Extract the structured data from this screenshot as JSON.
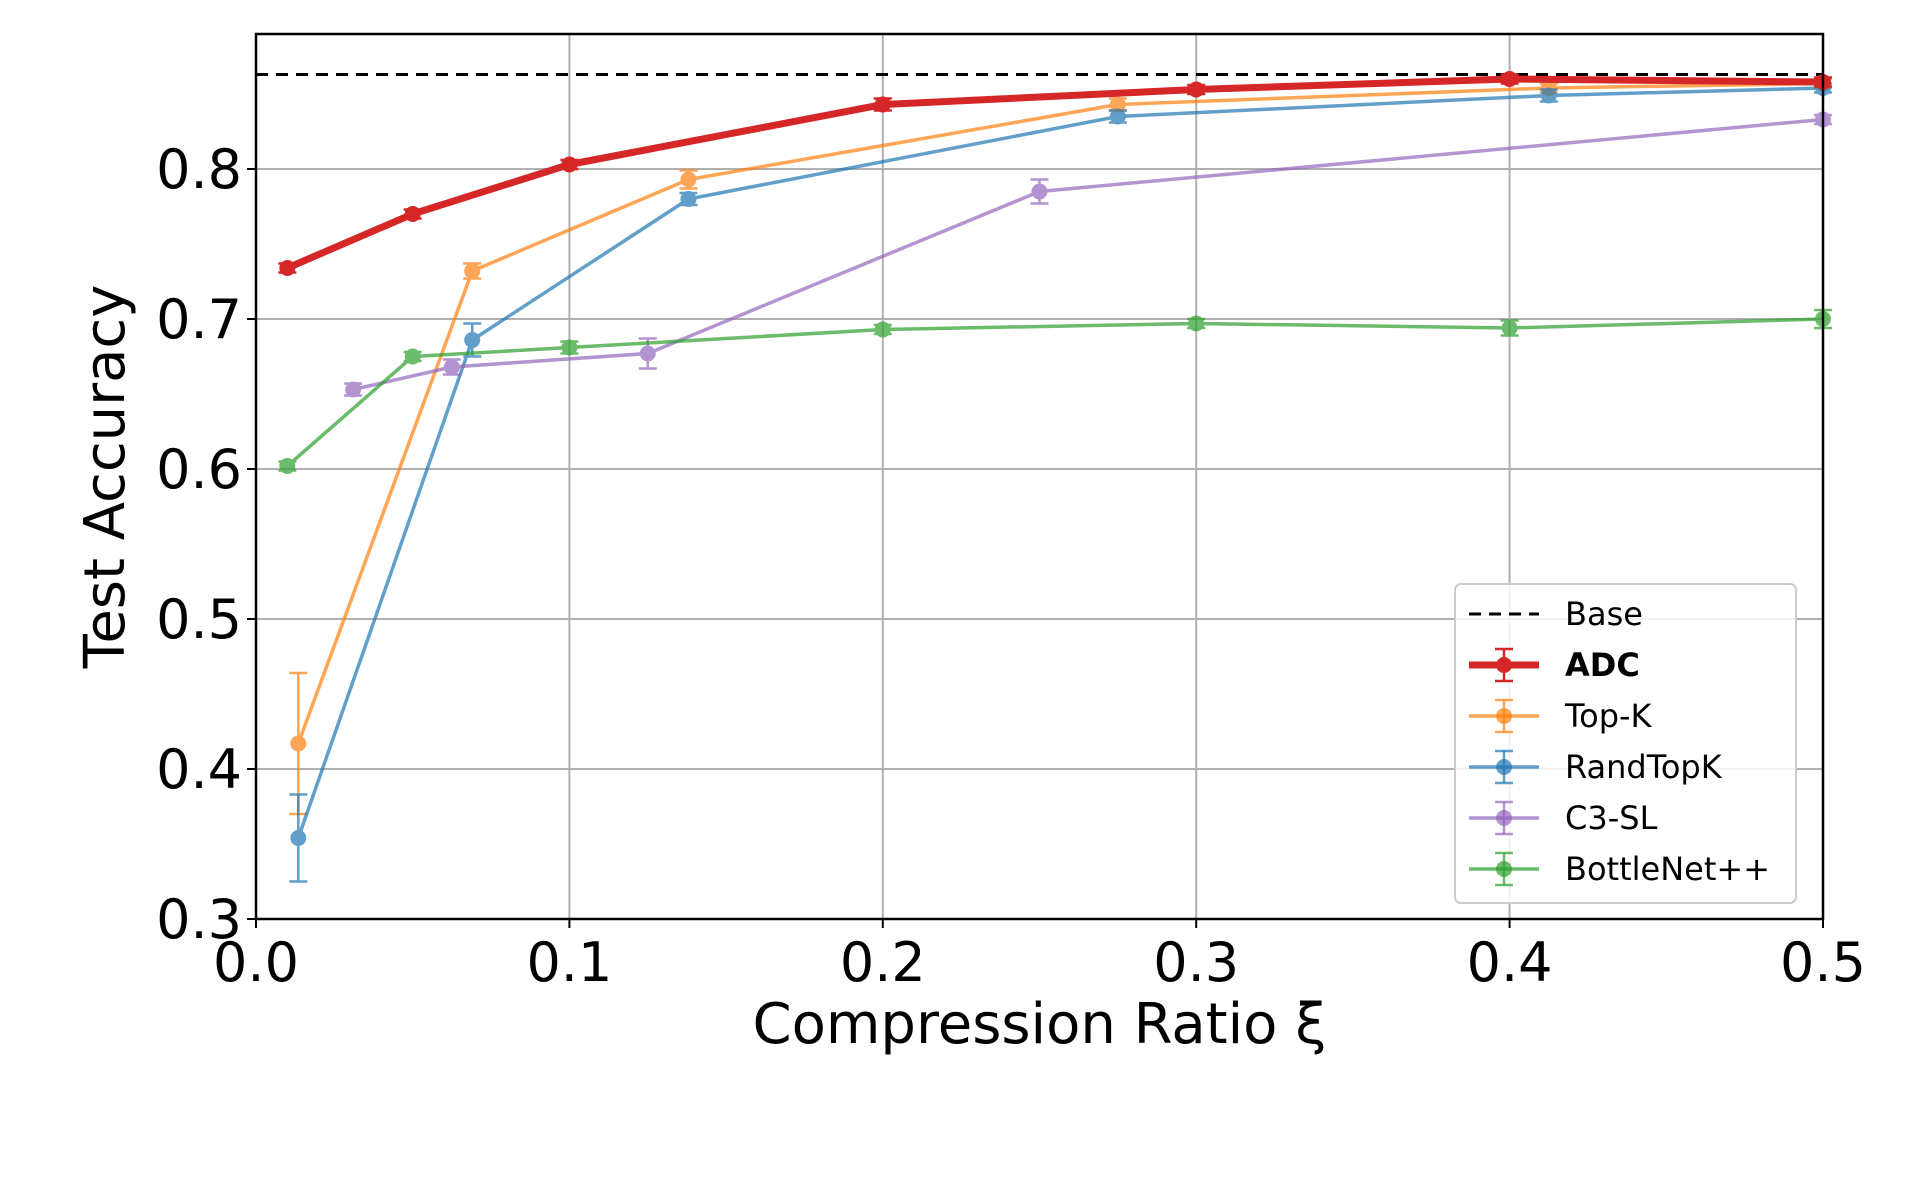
{
  "chart_data": {
    "type": "line",
    "xlabel": "Compression Ratio ξ",
    "ylabel": "Test Accuracy",
    "xlim": [
      0.0,
      0.5
    ],
    "ylim": [
      0.3,
      0.89
    ],
    "xticks": [
      0.0,
      0.1,
      0.2,
      0.3,
      0.4,
      0.5
    ],
    "yticks": [
      0.3,
      0.4,
      0.5,
      0.6,
      0.7,
      0.8
    ],
    "xtick_labels": [
      "0.0",
      "0.1",
      "0.2",
      "0.3",
      "0.4",
      "0.5"
    ],
    "ytick_labels": [
      "0.3",
      "0.4",
      "0.5",
      "0.6",
      "0.7",
      "0.8"
    ],
    "grid": true,
    "legend_position": "bottom-right",
    "baseline": {
      "name": "Base",
      "value": 0.863,
      "color": "#000000",
      "style": "dashed"
    },
    "series": [
      {
        "name": "ADC",
        "color": "#d62728",
        "bold": true,
        "points": [
          {
            "x": 0.01,
            "y": 0.734,
            "err": 0.003
          },
          {
            "x": 0.05,
            "y": 0.77,
            "err": 0.003
          },
          {
            "x": 0.1,
            "y": 0.803,
            "err": 0.003
          },
          {
            "x": 0.2,
            "y": 0.843,
            "err": 0.004
          },
          {
            "x": 0.3,
            "y": 0.853,
            "err": 0.003
          },
          {
            "x": 0.4,
            "y": 0.86,
            "err": 0.003
          },
          {
            "x": 0.5,
            "y": 0.858,
            "err": 0.003
          }
        ]
      },
      {
        "name": "Top-K",
        "color": "#ff7f0e",
        "points": [
          {
            "x": 0.0135,
            "y": 0.417,
            "err": 0.047
          },
          {
            "x": 0.069,
            "y": 0.732,
            "err": 0.005
          },
          {
            "x": 0.138,
            "y": 0.793,
            "err": 0.006
          },
          {
            "x": 0.275,
            "y": 0.843,
            "err": 0.004
          },
          {
            "x": 0.4125,
            "y": 0.854,
            "err": 0.003
          },
          {
            "x": 0.5,
            "y": 0.857,
            "err": 0.003
          }
        ]
      },
      {
        "name": "RandTopK",
        "color": "#1f77b4",
        "points": [
          {
            "x": 0.0135,
            "y": 0.354,
            "err": 0.029
          },
          {
            "x": 0.069,
            "y": 0.686,
            "err": 0.011
          },
          {
            "x": 0.138,
            "y": 0.78,
            "err": 0.004
          },
          {
            "x": 0.275,
            "y": 0.835,
            "err": 0.004
          },
          {
            "x": 0.4125,
            "y": 0.849,
            "err": 0.004
          },
          {
            "x": 0.5,
            "y": 0.854,
            "err": 0.003
          }
        ]
      },
      {
        "name": "C3-SL",
        "color": "#9467bd",
        "points": [
          {
            "x": 0.031,
            "y": 0.653,
            "err": 0.004
          },
          {
            "x": 0.0625,
            "y": 0.668,
            "err": 0.005
          },
          {
            "x": 0.125,
            "y": 0.677,
            "err": 0.01
          },
          {
            "x": 0.25,
            "y": 0.785,
            "err": 0.008
          },
          {
            "x": 0.5,
            "y": 0.833,
            "err": 0.003
          }
        ]
      },
      {
        "name": "BottleNet++",
        "color": "#2ca02c",
        "points": [
          {
            "x": 0.01,
            "y": 0.602,
            "err": 0.003
          },
          {
            "x": 0.05,
            "y": 0.675,
            "err": 0.003
          },
          {
            "x": 0.1,
            "y": 0.681,
            "err": 0.004
          },
          {
            "x": 0.2,
            "y": 0.693,
            "err": 0.003
          },
          {
            "x": 0.3,
            "y": 0.697,
            "err": 0.003
          },
          {
            "x": 0.4,
            "y": 0.694,
            "err": 0.005
          },
          {
            "x": 0.5,
            "y": 0.7,
            "err": 0.006
          }
        ]
      }
    ]
  }
}
